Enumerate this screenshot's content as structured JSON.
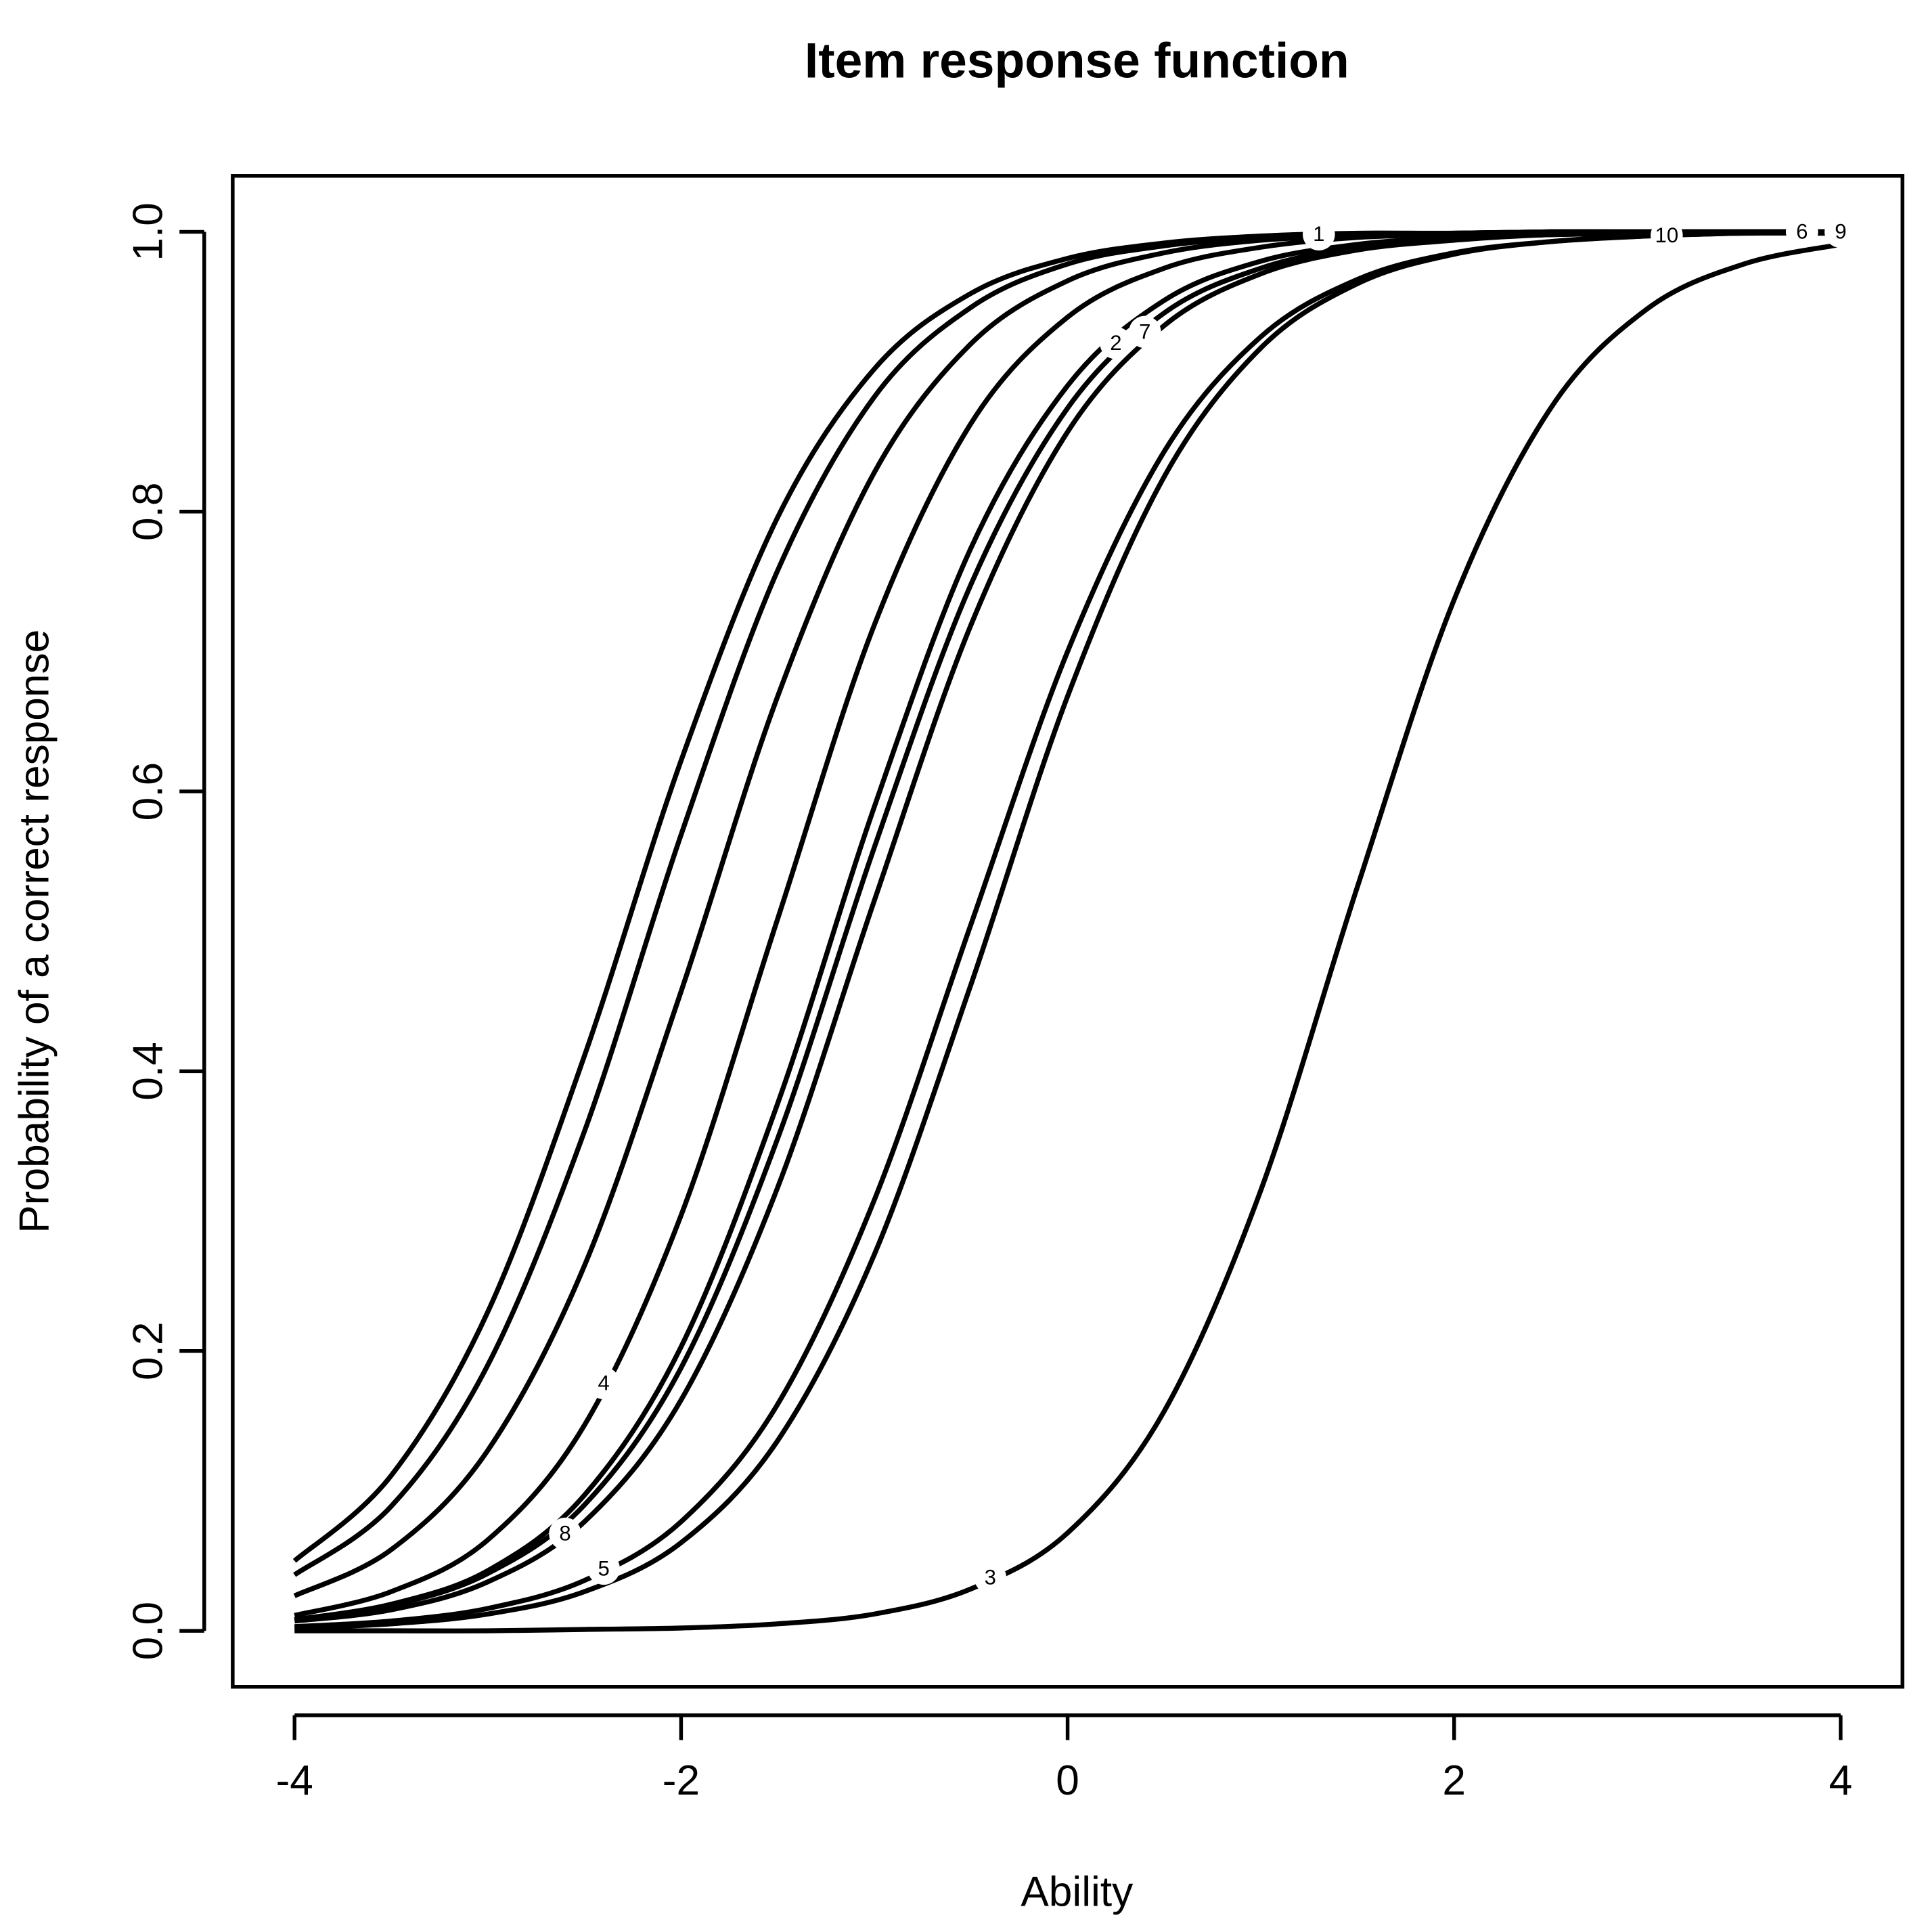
{
  "chart_data": {
    "type": "line",
    "title": "Item response function",
    "x_label": "Ability",
    "y_label": "Probability of a correct response",
    "xlim": [
      -4.32,
      4.32
    ],
    "ylim": [
      -0.04,
      1.04
    ],
    "xticks": [
      -4,
      -2,
      0,
      2,
      4
    ],
    "yticks": [
      {
        "value": 0,
        "label": "0.0"
      },
      0.2,
      0.4,
      0.6,
      0.8,
      {
        "value": 1,
        "label": "1.0"
      }
    ],
    "x": [
      -4,
      -3.5,
      -3,
      -2.5,
      -2,
      -1.5,
      -1,
      -0.5,
      0,
      0.5,
      1,
      1.5,
      2,
      2.5,
      3,
      3.5,
      4
    ],
    "series": [
      {
        "name": "1",
        "color": "#000000",
        "values": [
          0.05,
          0.111,
          0.228,
          0.411,
          0.622,
          0.796,
          0.902,
          0.956,
          0.981,
          0.992,
          0.997,
          0.999,
          0.999,
          1,
          1,
          1,
          1
        ]
      },
      {
        "name": "2",
        "color": "#000000",
        "values": [
          0.008,
          0.019,
          0.043,
          0.097,
          0.203,
          0.377,
          0.589,
          0.774,
          0.89,
          0.951,
          0.979,
          0.991,
          0.996,
          0.998,
          0.999,
          1,
          1
        ]
      },
      {
        "name": "3",
        "color": "#000000",
        "values": [
          0.0,
          0.0,
          0.0,
          0.001,
          0.002,
          0.005,
          0.012,
          0.03,
          0.07,
          0.157,
          0.315,
          0.532,
          0.737,
          0.874,
          0.945,
          0.977,
          0.991
        ]
      },
      {
        "name": "4",
        "color": "#000000",
        "values": [
          0.011,
          0.028,
          0.065,
          0.147,
          0.297,
          0.509,
          0.719,
          0.863,
          0.939,
          0.974,
          0.989,
          0.996,
          0.998,
          0.999,
          1,
          1,
          1
        ]
      },
      {
        "name": "5",
        "color": "#000000",
        "values": [
          0.003,
          0.007,
          0.016,
          0.036,
          0.078,
          0.162,
          0.308,
          0.505,
          0.7,
          0.843,
          0.925,
          0.966,
          0.985,
          0.993,
          0.997,
          0.999,
          0.999
        ]
      },
      {
        "name": "6",
        "color": "#000000",
        "values": [
          0.04,
          0.089,
          0.19,
          0.357,
          0.569,
          0.758,
          0.882,
          0.946,
          0.977,
          0.99,
          0.996,
          0.998,
          0.999,
          1,
          1,
          1,
          1
        ]
      },
      {
        "name": "7",
        "color": "#000000",
        "values": [
          0.008,
          0.018,
          0.041,
          0.09,
          0.188,
          0.352,
          0.56,
          0.748,
          0.874,
          0.942,
          0.974,
          0.989,
          0.995,
          0.998,
          0.999,
          1,
          1
        ]
      },
      {
        "name": "8",
        "color": "#000000",
        "values": [
          0.007,
          0.015,
          0.035,
          0.078,
          0.165,
          0.317,
          0.522,
          0.719,
          0.857,
          0.933,
          0.97,
          0.987,
          0.994,
          0.998,
          0.999,
          1,
          1
        ]
      },
      {
        "name": "9",
        "color": "#000000",
        "values": [
          0.025,
          0.058,
          0.129,
          0.261,
          0.457,
          0.668,
          0.828,
          0.92,
          0.965,
          0.985,
          0.994,
          0.997,
          0.999,
          1,
          1,
          1,
          1
        ]
      },
      {
        "name": "10",
        "color": "#000000",
        "values": [
          0.002,
          0.005,
          0.012,
          0.028,
          0.063,
          0.136,
          0.269,
          0.462,
          0.668,
          0.825,
          0.917,
          0.963,
          0.984,
          0.993,
          0.997,
          0.999,
          0.999
        ]
      }
    ]
  }
}
